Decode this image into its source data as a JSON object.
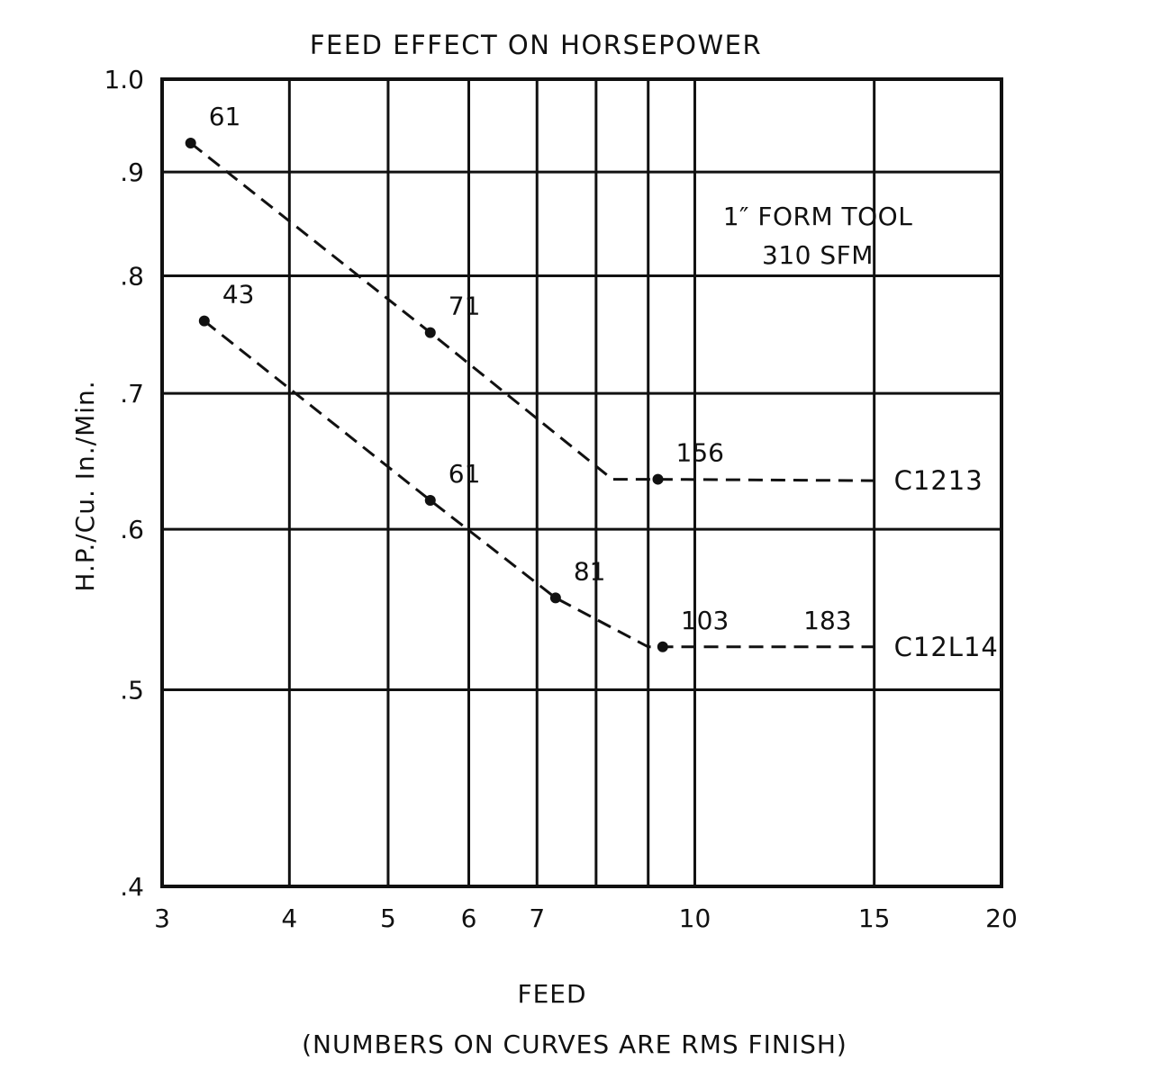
{
  "chart_data": {
    "type": "line",
    "title": "FEED EFFECT ON HORSEPOWER",
    "xlabel": "FEED",
    "xlabel_note": "(NUMBERS ON CURVES ARE RMS FINISH)",
    "ylabel": "H.P./Cu. In./Min.",
    "x_scale": "log",
    "y_scale": "log",
    "xlim": [
      3,
      20
    ],
    "ylim": [
      0.4,
      1.0
    ],
    "x_tick_labels": [
      {
        "value": 3,
        "label": "3"
      },
      {
        "value": 4,
        "label": "4"
      },
      {
        "value": 5,
        "label": "5"
      },
      {
        "value": 6,
        "label": "6"
      },
      {
        "value": 7,
        "label": "7"
      },
      {
        "value": 10,
        "label": "10"
      },
      {
        "value": 15,
        "label": "15"
      },
      {
        "value": 20,
        "label": "20"
      }
    ],
    "x_extra_gridlines": [
      8,
      9
    ],
    "y_tick_labels": [
      {
        "value": 0.4,
        "label": ".4"
      },
      {
        "value": 0.5,
        "label": ".5"
      },
      {
        "value": 0.6,
        "label": ".6"
      },
      {
        "value": 0.7,
        "label": ".7"
      },
      {
        "value": 0.8,
        "label": ".8"
      },
      {
        "value": 0.9,
        "label": ".9"
      },
      {
        "value": 1.0,
        "label": "1.0"
      }
    ],
    "grid": true,
    "annotation": [
      "1″ FORM TOOL",
      "310 SFM"
    ],
    "series": [
      {
        "name": "C1213",
        "style": "dashed",
        "line": [
          [
            3.2,
            0.93
          ],
          [
            5.5,
            0.75
          ],
          [
            8.3,
            0.635
          ],
          [
            9.2,
            0.635
          ],
          [
            15,
            0.634
          ]
        ],
        "points": [
          {
            "x": 3.2,
            "y": 0.93,
            "label": "61"
          },
          {
            "x": 5.5,
            "y": 0.75,
            "label": "71"
          },
          {
            "x": 9.2,
            "y": 0.635,
            "label": "156"
          }
        ]
      },
      {
        "name": "C12L14",
        "style": "dashed",
        "line": [
          [
            3.3,
            0.76
          ],
          [
            5.5,
            0.62
          ],
          [
            7.3,
            0.555
          ],
          [
            9.0,
            0.525
          ],
          [
            9.3,
            0.525
          ],
          [
            15,
            0.525
          ]
        ],
        "points": [
          {
            "x": 3.3,
            "y": 0.76,
            "label": "43"
          },
          {
            "x": 5.5,
            "y": 0.62,
            "label": "61"
          },
          {
            "x": 7.3,
            "y": 0.555,
            "label": "81"
          },
          {
            "x": 9.3,
            "y": 0.525,
            "label": "103"
          }
        ],
        "extra_labels": [
          {
            "x": 13.5,
            "y": 0.525,
            "label": "183"
          }
        ]
      }
    ]
  }
}
